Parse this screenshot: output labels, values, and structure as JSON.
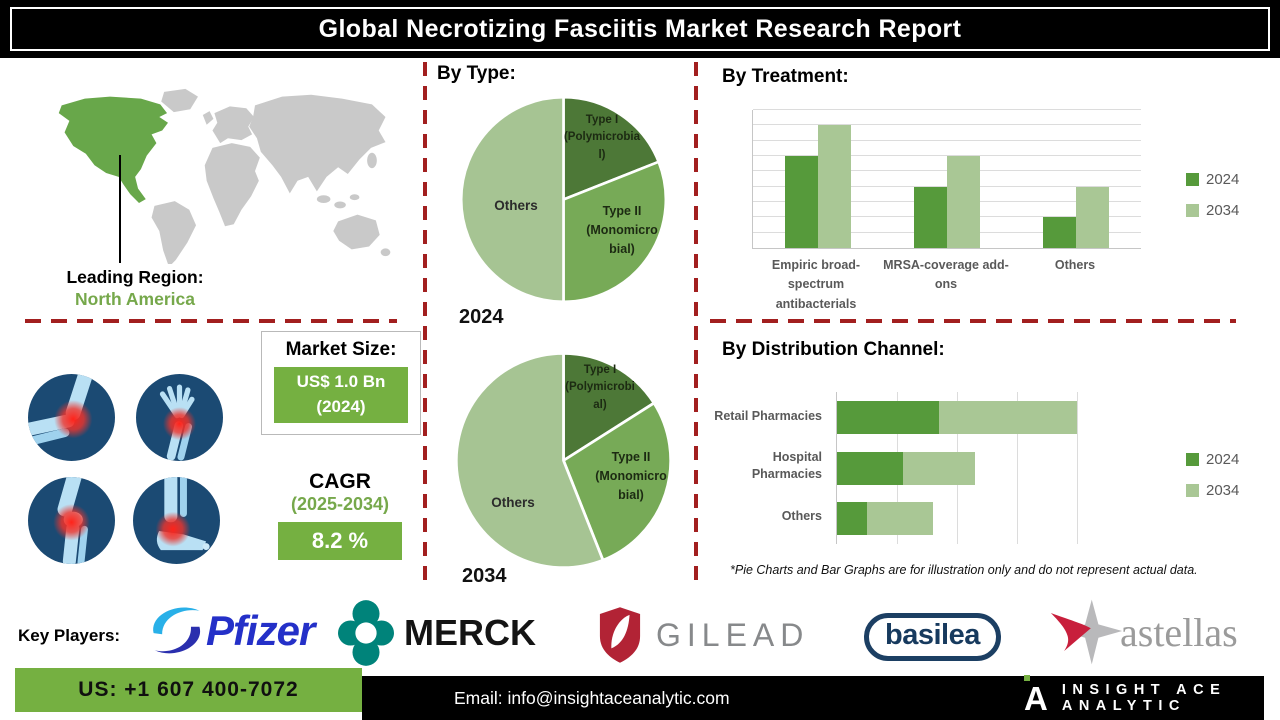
{
  "title": "Global Necrotizing Fasciitis Market Research Report",
  "leading_region": {
    "label": "Leading Region:",
    "value": "North America"
  },
  "market_size": {
    "heading": "Market Size:",
    "value": "US$ 1.0 Bn\n(2024)"
  },
  "cagr": {
    "heading": "CAGR",
    "period": "(2025-2034)",
    "value": "8.2 %"
  },
  "sections": {
    "by_type": "By Type:",
    "by_treatment": "By Treatment:",
    "by_distribution": "By Distribution Channel:"
  },
  "disclaimer": "*Pie Charts and Bar Graphs are for illustration only and do not represent actual data.",
  "key_players": {
    "label": "Key Players:",
    "companies": [
      "Pfizer",
      "MERCK",
      "GILEAD",
      "basilea",
      "astellas"
    ]
  },
  "footer": {
    "phone": "US: +1 607 400-7072",
    "email": "Email: info@insightaceanalytic.com",
    "brand": "INSIGHT ACE ANALYTIC"
  },
  "colors": {
    "accent_green": "#75b041",
    "series_2024": "#569a3b",
    "series_2034": "#a9c795",
    "map_green": "#68a74a",
    "map_gray": "#c9c9c9",
    "dashed_red": "#a21f1f",
    "title_bg": "#000000"
  },
  "chart_data": [
    {
      "type": "pie",
      "title": "By Type: 2024",
      "year_label": "2024",
      "labels": [
        "Type I (Polymicrobial)",
        "Type II (Monomicrobial)",
        "Others"
      ],
      "display_labels": [
        "Type I\n(Polymicrobia\nl)",
        "Type II\n(Monomicro\nbial)",
        "Others"
      ],
      "values": [
        19,
        31,
        50
      ],
      "colors": [
        "#4d7837",
        "#77aa57",
        "#a6c493"
      ]
    },
    {
      "type": "pie",
      "title": "By Type: 2034",
      "year_label": "2034",
      "labels": [
        "Type I (Polymicrobial)",
        "Type II (Monomicrobial)",
        "Others"
      ],
      "display_labels": [
        "Type I\n(Polymicrobi\nal)",
        "Type II\n(Monomicro\nbial)",
        "Others"
      ],
      "values": [
        16,
        28,
        56
      ],
      "colors": [
        "#4d7837",
        "#77aa57",
        "#a6c493"
      ]
    },
    {
      "type": "bar",
      "title": "By Treatment:",
      "categories": [
        "Empiric broad-spectrum antibacterials",
        "MRSA-coverage add-ons",
        "Others"
      ],
      "series": [
        {
          "name": "2024",
          "values": [
            60,
            40,
            20
          ]
        },
        {
          "name": "2034",
          "values": [
            80,
            60,
            40
          ]
        }
      ],
      "colors": [
        "#569a3b",
        "#a9c795"
      ],
      "ylim": [
        0,
        90
      ],
      "gridline_step": 10,
      "legend_position": "right",
      "grid": true
    },
    {
      "type": "bar",
      "orientation": "horizontal",
      "stacked": true,
      "title": "By Distribution Channel:",
      "categories": [
        "Retail Pharmacies",
        "Hospital Pharmacies",
        "Others"
      ],
      "series": [
        {
          "name": "2024",
          "values": [
            17,
            11,
            5
          ]
        },
        {
          "name": "2034",
          "values": [
            23,
            12,
            11
          ]
        }
      ],
      "colors": [
        "#569a3b",
        "#a9c795"
      ],
      "xlim": [
        0,
        50
      ],
      "gridline_step": 10,
      "legend_position": "right",
      "grid": true
    }
  ]
}
